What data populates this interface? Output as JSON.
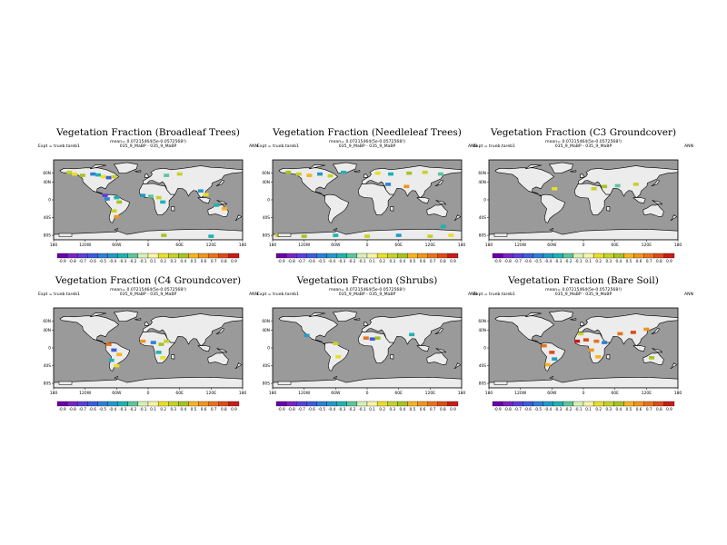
{
  "figure": {
    "colors": {
      "ocean": "#9a9a9a",
      "land": "#ececec",
      "frame": "#000000"
    }
  },
  "chart_data": [
    {
      "type": "heatmap",
      "title": "Vegetation Fraction (Broadleaf Trees)",
      "means_text": "mean= 0.07215464(5e-0.0572568!)",
      "expt_text": "Expt = trueb.tareb1",
      "case_text": "035_9_MaBP - 035_9_MaBP",
      "season": "ANN",
      "lon_ticks": [
        "180",
        "120W",
        "60W",
        "0",
        "60E",
        "120E",
        "180"
      ],
      "lat_ticks": [
        "60N",
        "40N",
        "0",
        "40S",
        "80S"
      ],
      "colorbar_ticks": [
        "-0.9",
        "-0.8",
        "-0.7",
        "-0.6",
        "-0.5",
        "-0.4",
        "-0.3",
        "-0.2",
        "-0.1",
        "0.1",
        "0.2",
        "0.3",
        "0.4",
        "0.5",
        "0.6",
        "0.7",
        "0.8",
        "0.9"
      ],
      "xlim": [
        -180,
        180
      ],
      "ylim": [
        -90,
        90
      ],
      "anomaly_points": [
        {
          "lon": -150,
          "lat": 62,
          "value": 0.3
        },
        {
          "lon": -140,
          "lat": 58,
          "value": 0.2
        },
        {
          "lon": -125,
          "lat": 55,
          "value": 0.4
        },
        {
          "lon": -105,
          "lat": 58,
          "value": -0.5
        },
        {
          "lon": -95,
          "lat": 56,
          "value": -0.3
        },
        {
          "lon": -85,
          "lat": 52,
          "value": 0.2
        },
        {
          "lon": -75,
          "lat": 50,
          "value": -0.6
        },
        {
          "lon": -65,
          "lat": 52,
          "value": 0.3
        },
        {
          "lon": -82,
          "lat": 10,
          "value": -0.7
        },
        {
          "lon": -78,
          "lat": 2,
          "value": -0.5
        },
        {
          "lon": -60,
          "lat": 5,
          "value": -0.3
        },
        {
          "lon": -55,
          "lat": -5,
          "value": 0.4
        },
        {
          "lon": -65,
          "lat": -25,
          "value": 0.3
        },
        {
          "lon": -60,
          "lat": -38,
          "value": 0.6
        },
        {
          "lon": -10,
          "lat": 10,
          "value": -0.4
        },
        {
          "lon": 5,
          "lat": 8,
          "value": -0.2
        },
        {
          "lon": 20,
          "lat": 5,
          "value": 0.3
        },
        {
          "lon": 28,
          "lat": -5,
          "value": -0.3
        },
        {
          "lon": 35,
          "lat": 55,
          "value": -0.2
        },
        {
          "lon": 60,
          "lat": 58,
          "value": 0.3
        },
        {
          "lon": 100,
          "lat": 20,
          "value": -0.4
        },
        {
          "lon": 110,
          "lat": 12,
          "value": 0.2
        },
        {
          "lon": 130,
          "lat": -12,
          "value": -0.3
        },
        {
          "lon": 145,
          "lat": -20,
          "value": 0.5
        },
        {
          "lon": 120,
          "lat": -82,
          "value": -0.3
        },
        {
          "lon": 30,
          "lat": -80,
          "value": 0.4
        }
      ]
    },
    {
      "type": "heatmap",
      "title": "Vegetation Fraction (Needleleaf Trees)",
      "means_text": "mean= 0.07215464(5e-0.0572568!)",
      "expt_text": "Expt = trueb.tareb1",
      "case_text": "035_9_MaBP - 035_9_MaBP",
      "season": "ANN",
      "lon_ticks": [
        "180",
        "120W",
        "60W",
        "0",
        "60E",
        "120E",
        "180"
      ],
      "lat_ticks": [
        "60N",
        "40N",
        "0",
        "40S",
        "80S"
      ],
      "colorbar_ticks": [
        "-0.9",
        "-0.8",
        "-0.7",
        "-0.6",
        "-0.5",
        "-0.4",
        "-0.3",
        "-0.2",
        "-0.1",
        "0.1",
        "0.2",
        "0.3",
        "0.4",
        "0.5",
        "0.6",
        "0.7",
        "0.8",
        "0.9"
      ],
      "xlim": [
        -180,
        180
      ],
      "ylim": [
        -90,
        90
      ],
      "anomaly_points": [
        {
          "lon": -150,
          "lat": 62,
          "value": 0.4
        },
        {
          "lon": -130,
          "lat": 58,
          "value": 0.3
        },
        {
          "lon": -110,
          "lat": 55,
          "value": 0.5
        },
        {
          "lon": -90,
          "lat": 58,
          "value": -0.4
        },
        {
          "lon": -70,
          "lat": 54,
          "value": 0.3
        },
        {
          "lon": -45,
          "lat": 62,
          "value": -0.3
        },
        {
          "lon": 20,
          "lat": 60,
          "value": 0.2
        },
        {
          "lon": 45,
          "lat": 58,
          "value": -0.3
        },
        {
          "lon": 80,
          "lat": 60,
          "value": 0.4
        },
        {
          "lon": 110,
          "lat": 62,
          "value": 0.3
        },
        {
          "lon": 140,
          "lat": 58,
          "value": -0.2
        },
        {
          "lon": 40,
          "lat": 35,
          "value": -0.5
        },
        {
          "lon": 75,
          "lat": 30,
          "value": 0.6
        },
        {
          "lon": -170,
          "lat": -80,
          "value": 0.3
        },
        {
          "lon": -120,
          "lat": -82,
          "value": 0.4
        },
        {
          "lon": -60,
          "lat": -80,
          "value": -0.3
        },
        {
          "lon": 0,
          "lat": -82,
          "value": 0.3
        },
        {
          "lon": 60,
          "lat": -80,
          "value": -0.4
        },
        {
          "lon": 120,
          "lat": -82,
          "value": 0.3
        },
        {
          "lon": 160,
          "lat": -80,
          "value": 0.2
        },
        {
          "lon": 145,
          "lat": -60,
          "value": -0.3
        }
      ]
    },
    {
      "type": "heatmap",
      "title": "Vegetation Fraction (C3 Groundcover)",
      "means_text": "mean= 0.07215464(5e-0.0572568!)",
      "expt_text": "Expt = trueb.tareb1",
      "case_text": "035_9_MaBP - 035_9_MaBP",
      "season": "ANN",
      "lon_ticks": [
        "180",
        "120W",
        "60W",
        "0",
        "60E",
        "120E",
        "180"
      ],
      "lat_ticks": [
        "60N",
        "40N",
        "0",
        "40S",
        "80S"
      ],
      "colorbar_ticks": [
        "-0.9",
        "-0.8",
        "-0.7",
        "-0.6",
        "-0.5",
        "-0.4",
        "-0.3",
        "-0.2",
        "-0.1",
        "0.1",
        "0.2",
        "0.3",
        "0.4",
        "0.5",
        "0.6",
        "0.7",
        "0.8",
        "0.9"
      ],
      "xlim": [
        -180,
        180
      ],
      "ylim": [
        -90,
        90
      ],
      "anomaly_points": [
        {
          "lon": -55,
          "lat": 25,
          "value": 0.2
        },
        {
          "lon": 20,
          "lat": 25,
          "value": 0.3
        },
        {
          "lon": 40,
          "lat": 30,
          "value": 0.4
        },
        {
          "lon": 65,
          "lat": 32,
          "value": -0.2
        },
        {
          "lon": 100,
          "lat": 35,
          "value": 0.3
        }
      ]
    },
    {
      "type": "heatmap",
      "title": "Vegetation Fraction (C4 Groundcover)",
      "means_text": "mean= 0.07215464(5e-0.0572568!)",
      "expt_text": "Expt = trueb.tareb1",
      "case_text": "035_9_MaBP - 035_9_MaBP",
      "season": "ANN",
      "lon_ticks": [
        "180",
        "120W",
        "60W",
        "0",
        "60E",
        "120E",
        "180"
      ],
      "lat_ticks": [
        "60N",
        "40N",
        "0",
        "40S",
        "80S"
      ],
      "colorbar_ticks": [
        "-0.9",
        "-0.8",
        "-0.7",
        "-0.6",
        "-0.5",
        "-0.4",
        "-0.3",
        "-0.2",
        "-0.1",
        "0.1",
        "0.2",
        "0.3",
        "0.4",
        "0.5",
        "0.6",
        "0.7",
        "0.8",
        "0.9"
      ],
      "xlim": [
        -180,
        180
      ],
      "ylim": [
        -90,
        90
      ],
      "anomaly_points": [
        {
          "lon": -75,
          "lat": 8,
          "value": 0.7
        },
        {
          "lon": -65,
          "lat": -5,
          "value": -0.6
        },
        {
          "lon": -55,
          "lat": -15,
          "value": 0.5
        },
        {
          "lon": -70,
          "lat": -28,
          "value": -0.3
        },
        {
          "lon": -60,
          "lat": -40,
          "value": 0.2
        },
        {
          "lon": -10,
          "lat": 15,
          "value": 0.6
        },
        {
          "lon": 10,
          "lat": 12,
          "value": -0.5
        },
        {
          "lon": 25,
          "lat": 8,
          "value": 0.4
        },
        {
          "lon": 35,
          "lat": 15,
          "value": 0.3
        },
        {
          "lon": 20,
          "lat": -10,
          "value": -0.3
        },
        {
          "lon": 28,
          "lat": -22,
          "value": 0.2
        }
      ]
    },
    {
      "type": "heatmap",
      "title": "Vegetation Fraction (Shrubs)",
      "means_text": "mean= 0.07215464(5e-0.0572568!)",
      "expt_text": "Expt = trueb.tareb1",
      "case_text": "035_9_MaBP - 035_9_MaBP",
      "season": "ANN",
      "lon_ticks": [
        "180",
        "120W",
        "60W",
        "0",
        "60E",
        "120E",
        "180"
      ],
      "lat_ticks": [
        "60N",
        "40N",
        "0",
        "40S",
        "80S"
      ],
      "colorbar_ticks": [
        "-0.9",
        "-0.8",
        "-0.7",
        "-0.6",
        "-0.5",
        "-0.4",
        "-0.3",
        "-0.2",
        "-0.1",
        "0.1",
        "0.2",
        "0.3",
        "0.4",
        "0.5",
        "0.6",
        "0.7",
        "0.8",
        "0.9"
      ],
      "xlim": [
        -180,
        180
      ],
      "ylim": [
        -90,
        90
      ],
      "anomaly_points": [
        {
          "lon": -115,
          "lat": 28,
          "value": -0.4
        },
        {
          "lon": -60,
          "lat": 10,
          "value": 0.3
        },
        {
          "lon": -2,
          "lat": 22,
          "value": 0.7
        },
        {
          "lon": 10,
          "lat": 20,
          "value": -0.6
        },
        {
          "lon": 20,
          "lat": 22,
          "value": 0.4
        },
        {
          "lon": 85,
          "lat": 30,
          "value": -0.3
        },
        {
          "lon": -55,
          "lat": -20,
          "value": 0.2
        }
      ]
    },
    {
      "type": "heatmap",
      "title": "Vegetation Fraction (Bare Soil)",
      "means_text": "mean= 0.07215464(5e-0.0572568!)",
      "expt_text": "Expt = trueb.tareb1",
      "case_text": "035_9_MaBP - 035_9_MaBP",
      "season": "ANN",
      "lon_ticks": [
        "180",
        "120W",
        "60W",
        "0",
        "60E",
        "120E",
        "180"
      ],
      "lat_ticks": [
        "60N",
        "40N",
        "0",
        "40S",
        "80S"
      ],
      "colorbar_ticks": [
        "-0.9",
        "-0.8",
        "-0.7",
        "-0.6",
        "-0.5",
        "-0.4",
        "-0.3",
        "-0.2",
        "-0.1",
        "0.1",
        "0.2",
        "0.3",
        "0.4",
        "0.5",
        "0.6",
        "0.7",
        "0.8",
        "0.9"
      ],
      "xlim": [
        -180,
        180
      ],
      "ylim": [
        -90,
        90
      ],
      "anomaly_points": [
        {
          "lon": -75,
          "lat": 5,
          "value": 0.7
        },
        {
          "lon": -60,
          "lat": -10,
          "value": 0.8
        },
        {
          "lon": -55,
          "lat": -25,
          "value": -0.4
        },
        {
          "lon": -68,
          "lat": -38,
          "value": 0.5
        },
        {
          "lon": -12,
          "lat": 15,
          "value": 0.9
        },
        {
          "lon": 5,
          "lat": 18,
          "value": 0.8
        },
        {
          "lon": 25,
          "lat": 15,
          "value": 0.7
        },
        {
          "lon": 40,
          "lat": 12,
          "value": -0.5
        },
        {
          "lon": 15,
          "lat": -5,
          "value": 0.6
        },
        {
          "lon": 28,
          "lat": -20,
          "value": 0.5
        },
        {
          "lon": 70,
          "lat": 32,
          "value": 0.7
        },
        {
          "lon": 95,
          "lat": 35,
          "value": 0.8
        },
        {
          "lon": 120,
          "lat": 42,
          "value": 0.6
        },
        {
          "lon": 130,
          "lat": -22,
          "value": 0.4
        },
        {
          "lon": -5,
          "lat": 32,
          "value": 0.3
        }
      ]
    }
  ]
}
